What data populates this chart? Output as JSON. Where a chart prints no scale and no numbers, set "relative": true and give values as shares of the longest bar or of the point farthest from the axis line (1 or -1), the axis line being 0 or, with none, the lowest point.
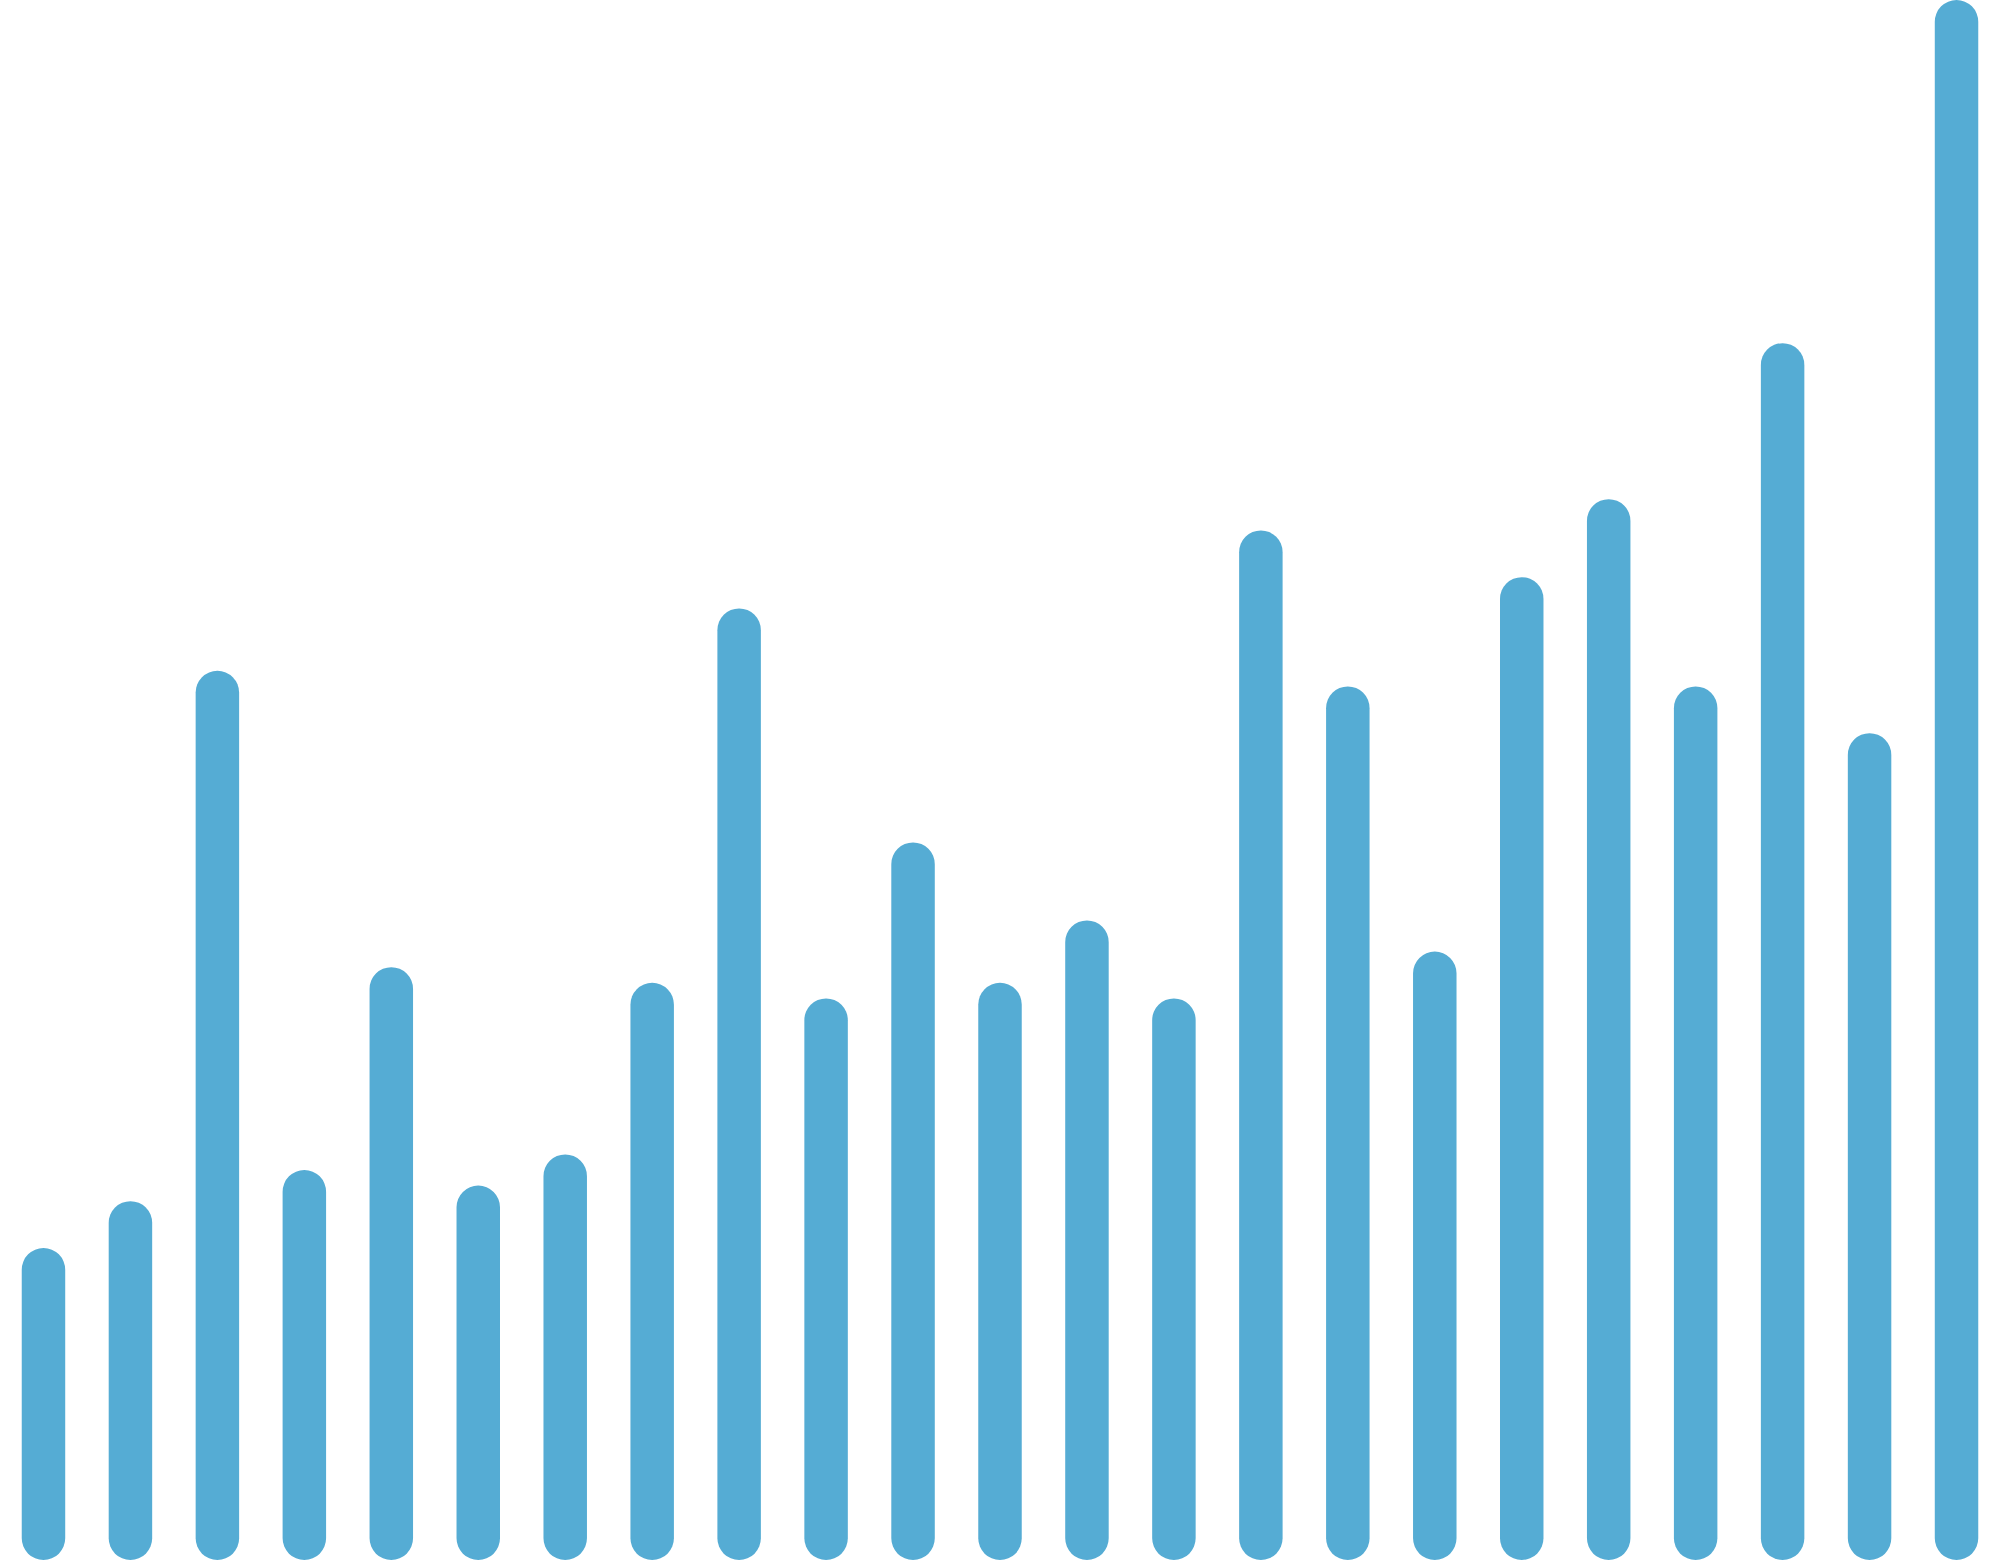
{
  "chart_data": {
    "type": "bar",
    "relative": true,
    "color": "#55acd4",
    "categories": [
      null,
      null,
      null,
      null,
      null,
      null,
      null,
      null,
      null,
      null,
      null,
      null,
      null,
      null,
      null,
      null,
      null,
      null,
      null,
      null,
      null,
      null,
      null
    ],
    "values": [
      0.2,
      0.23,
      0.57,
      0.25,
      0.38,
      0.24,
      0.26,
      0.37,
      0.61,
      0.36,
      0.46,
      0.37,
      0.41,
      0.36,
      0.66,
      0.56,
      0.39,
      0.63,
      0.68,
      0.56,
      0.78,
      0.53,
      1
    ]
  }
}
